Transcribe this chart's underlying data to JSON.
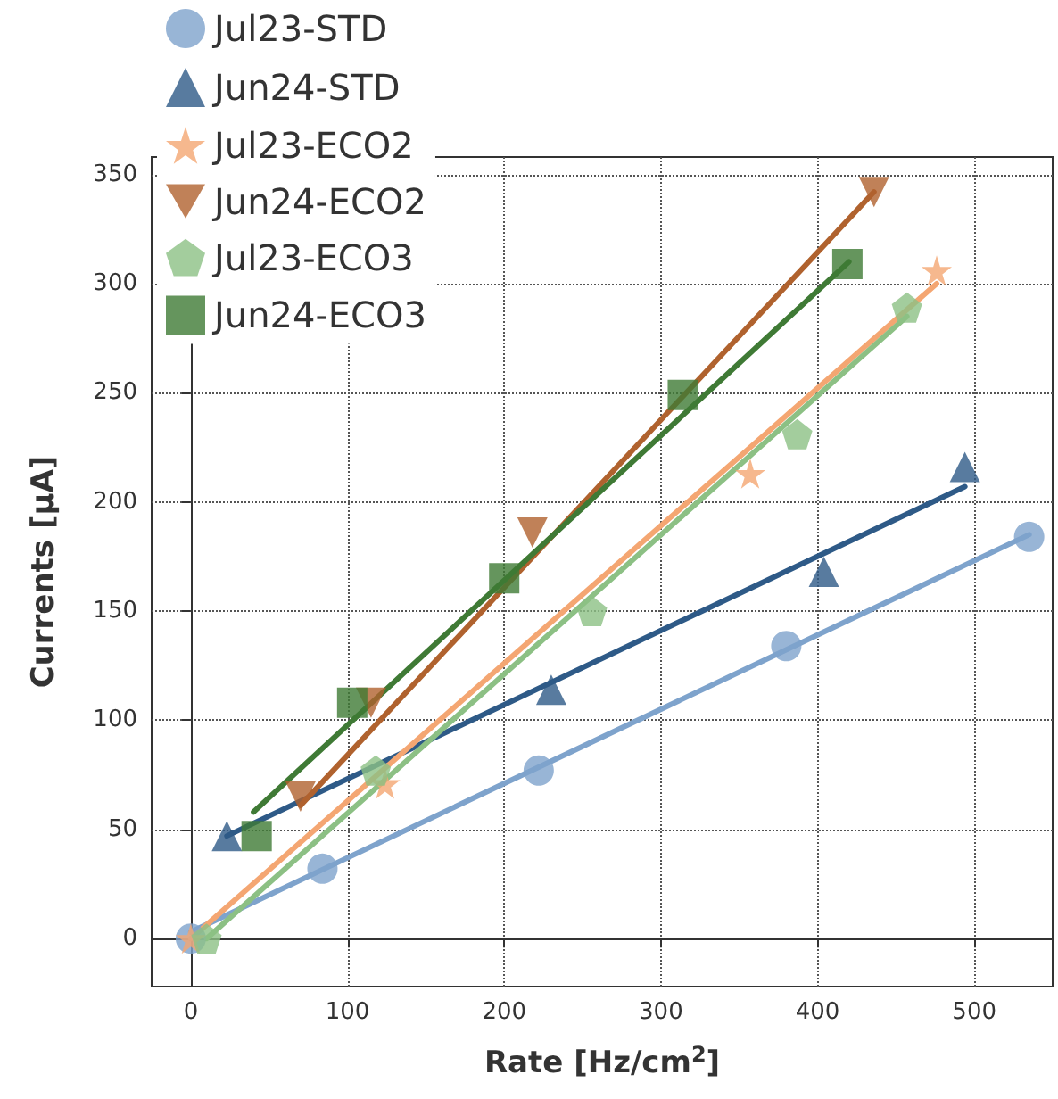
{
  "chart_data": {
    "type": "scatter",
    "xlabel": "Rate [Hz/cm$^{2}$]",
    "ylabel": "Currents [μA]",
    "xlim": [
      -25,
      550
    ],
    "xticks": [
      0,
      100,
      200,
      300,
      400,
      500
    ],
    "ylim": [
      -22,
      358
    ],
    "yticks": [
      0,
      50,
      100,
      150,
      200,
      250,
      300,
      350
    ],
    "grid": true,
    "legend": "top left",
    "series": [
      {
        "name": "Jul23-STD",
        "color": "#7ea3cc",
        "marker": "circle",
        "x": [
          0,
          84,
          222,
          380,
          535
        ],
        "values": [
          0,
          32,
          77,
          134,
          184
        ]
      },
      {
        "name": "Jun24-STD",
        "color": "#2e5a87",
        "marker": "triangle",
        "x": [
          23,
          230,
          404,
          494
        ],
        "values": [
          47,
          114,
          168,
          216
        ]
      },
      {
        "name": "Jul23-ECO2",
        "color": "#f4a672",
        "marker": "star",
        "x": [
          0,
          124,
          357,
          476
        ],
        "values": [
          0,
          71,
          213,
          306
        ]
      },
      {
        "name": "Jun24-ECO2",
        "color": "#b0622e",
        "marker": "triangle_down",
        "x": [
          70,
          115,
          218,
          436
        ],
        "values": [
          65,
          108,
          186,
          342
        ]
      },
      {
        "name": "Jul23-ECO3",
        "color": "#8cc084",
        "x": [
          10,
          118,
          256,
          387,
          457
        ],
        "values": [
          0,
          77,
          150,
          231,
          289
        ]
      },
      {
        "name": "Jun24-ECO3",
        "color": "#3f7a35",
        "marker": "square",
        "x": [
          42,
          103,
          200,
          314,
          419
        ],
        "values": [
          47,
          108,
          165,
          249,
          309
        ]
      },
      {
        "type": "line",
        "color": "#7ea3cc",
        "marker": "none",
        "x": [
          0,
          535
        ],
        "values": [
          3,
          185
        ]
      },
      {
        "type": "line",
        "color": "#2e5a87",
        "marker": "none",
        "x": [
          23,
          494
        ],
        "values": [
          47,
          207
        ]
      },
      {
        "type": "line",
        "color": "#f4a672",
        "marker": "none",
        "x": [
          0,
          476
        ],
        "values": [
          0,
          300
        ]
      },
      {
        "type": "line",
        "color": "#b0622e",
        "marker": "none",
        "x": [
          70,
          436
        ],
        "values": [
          61,
          342
        ]
      },
      {
        "type": "line",
        "color": "#8cc084",
        "marker": "none",
        "x": [
          10,
          457
        ],
        "values": [
          0,
          285
        ]
      },
      {
        "type": "line",
        "color": "#3f7a35",
        "marker": "none",
        "x": [
          40,
          420
        ],
        "values": [
          58,
          310
        ]
      }
    ]
  }
}
